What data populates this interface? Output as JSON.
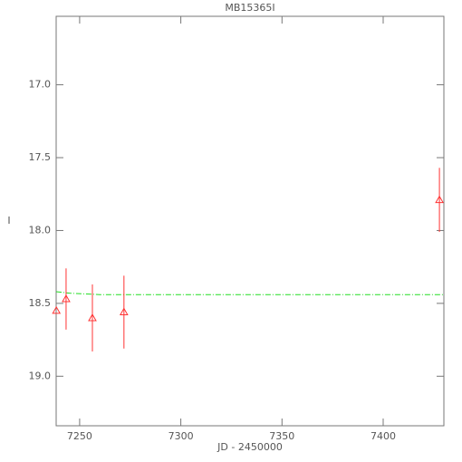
{
  "chart_data": {
    "type": "scatter",
    "title": "MB15365I",
    "xlabel": "JD - 2450000",
    "ylabel": "I",
    "xlim": [
      7238.4,
      7430
    ],
    "ylim": [
      19.34,
      16.53
    ],
    "xticks": [
      7250,
      7300,
      7350,
      7400
    ],
    "yticks": [
      {
        "value": 17.0,
        "label": "17.0"
      },
      {
        "value": 17.5,
        "label": "17.5"
      },
      {
        "value": 18.0,
        "label": "18.0"
      },
      {
        "value": 18.5,
        "label": "18.5"
      },
      {
        "value": 19.0,
        "label": "19.0"
      }
    ],
    "points": {
      "color": "#ff3333",
      "x": [
        7238.5,
        7243.3,
        7256.3,
        7271.9,
        7427.8
      ],
      "y": [
        18.55,
        18.47,
        18.6,
        18.56,
        17.79
      ],
      "err": [
        0,
        0.21,
        0.23,
        0.25,
        0.22
      ]
    },
    "model": {
      "color": "#22dd22",
      "x": [
        7238.4,
        7245,
        7260,
        7300,
        7430
      ],
      "y": [
        18.42,
        18.43,
        18.44,
        18.44,
        18.44
      ]
    }
  }
}
